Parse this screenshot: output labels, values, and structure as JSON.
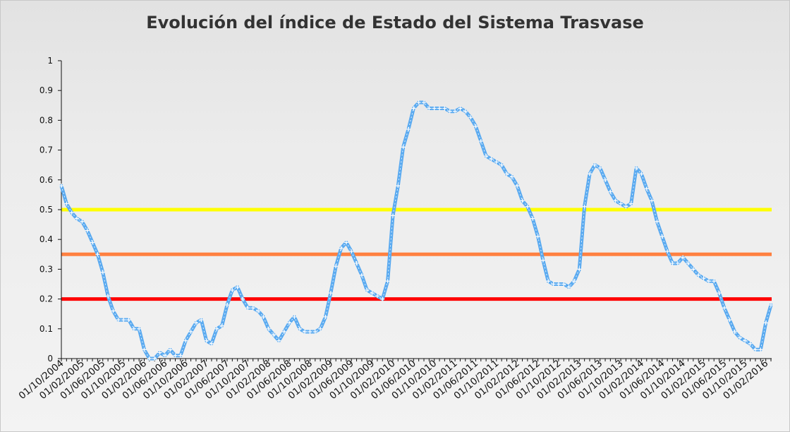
{
  "chart_data": {
    "type": "line",
    "title": "Evolución del índice de Estado del Sistema Trasvase",
    "xlabel": "",
    "ylabel": "",
    "ylim": [
      0,
      1
    ],
    "yticks": [
      "0",
      "0.1",
      "0.2",
      "0.3",
      "0.4",
      "0.5",
      "0.6",
      "0.7",
      "0.8",
      "0.9",
      "1"
    ],
    "xticks": [
      "01/10/2004",
      "01/02/2005",
      "01/06/2005",
      "01/10/2005",
      "01/02/2006",
      "01/06/2006",
      "01/10/2006",
      "01/02/2007",
      "01/06/2007",
      "01/10/2007",
      "01/02/2008",
      "01/06/2008",
      "01/10/2008",
      "01/02/2009",
      "01/06/2009",
      "01/10/2009",
      "01/02/2010",
      "01/06/2010",
      "01/10/2010",
      "01/02/2011",
      "01/06/2011",
      "01/10/2011",
      "01/02/2012",
      "01/06/2012",
      "01/10/2012",
      "01/02/2013",
      "01/06/2013",
      "01/10/2013",
      "01/02/2014",
      "01/06/2014",
      "01/10/2014",
      "01/02/2015",
      "01/06/2015",
      "01/10/2015",
      "01/02/2016"
    ],
    "x_start": "2004-10-01",
    "x_step": "1 month",
    "grid": false,
    "series": [
      {
        "color": "#5aaaf0",
        "values": [
          0.58,
          0.52,
          0.49,
          0.47,
          0.46,
          0.43,
          0.39,
          0.35,
          0.29,
          0.21,
          0.16,
          0.13,
          0.13,
          0.13,
          0.1,
          0.1,
          0.03,
          0.0,
          0.0,
          0.02,
          0.01,
          0.03,
          0.01,
          0.01,
          0.06,
          0.09,
          0.12,
          0.13,
          0.06,
          0.05,
          0.1,
          0.11,
          0.18,
          0.23,
          0.24,
          0.2,
          0.17,
          0.17,
          0.16,
          0.14,
          0.1,
          0.08,
          0.06,
          0.09,
          0.12,
          0.14,
          0.1,
          0.09,
          0.09,
          0.09,
          0.1,
          0.14,
          0.22,
          0.31,
          0.37,
          0.39,
          0.36,
          0.32,
          0.28,
          0.23,
          0.22,
          0.21,
          0.2,
          0.26,
          0.48,
          0.58,
          0.71,
          0.77,
          0.84,
          0.86,
          0.86,
          0.84,
          0.84,
          0.84,
          0.84,
          0.83,
          0.83,
          0.84,
          0.83,
          0.81,
          0.78,
          0.73,
          0.68,
          0.67,
          0.66,
          0.65,
          0.62,
          0.61,
          0.58,
          0.53,
          0.51,
          0.47,
          0.41,
          0.33,
          0.26,
          0.25,
          0.25,
          0.25,
          0.24,
          0.26,
          0.3,
          0.51,
          0.62,
          0.65,
          0.64,
          0.6,
          0.56,
          0.53,
          0.52,
          0.51,
          0.52,
          0.64,
          0.62,
          0.57,
          0.53,
          0.46,
          0.41,
          0.36,
          0.32,
          0.32,
          0.34,
          0.32,
          0.3,
          0.28,
          0.27,
          0.26,
          0.26,
          0.22,
          0.17,
          0.13,
          0.09,
          0.07,
          0.06,
          0.05,
          0.03,
          0.03,
          0.12,
          0.18
        ]
      }
    ],
    "threshold_lines": [
      {
        "value": 0.5,
        "color": "#ffff00"
      },
      {
        "value": 0.35,
        "color": "#ff8040"
      },
      {
        "value": 0.2,
        "color": "#ff0000"
      }
    ]
  }
}
